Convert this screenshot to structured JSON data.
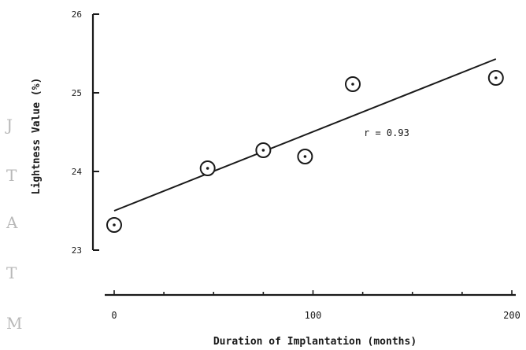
{
  "chart_data": {
    "type": "scatter",
    "title": "",
    "xlabel": "Duration of Implantation (months)",
    "ylabel": "Lightness Value (%)",
    "xlim": [
      0,
      200
    ],
    "ylim": [
      23,
      26
    ],
    "x_ticks": [
      0,
      100,
      200
    ],
    "y_ticks": [
      23,
      24,
      25,
      26
    ],
    "x_tick_labels": [
      "0",
      "100",
      "200"
    ],
    "y_tick_labels": [
      "23",
      "24",
      "25",
      "26"
    ],
    "grid": false,
    "legend": "none",
    "points": [
      {
        "x": 0,
        "y": 23.32
      },
      {
        "x": 47,
        "y": 24.04
      },
      {
        "x": 75,
        "y": 24.27
      },
      {
        "x": 96,
        "y": 24.19
      },
      {
        "x": 120,
        "y": 25.11
      },
      {
        "x": 192,
        "y": 25.19
      }
    ],
    "fit_line": {
      "x1": 0,
      "y1": 23.5,
      "x2": 192,
      "y2": 25.43
    },
    "annotation": "r = 0.93"
  },
  "margin_letters": [
    "J",
    "T",
    "A",
    "T",
    "M"
  ]
}
